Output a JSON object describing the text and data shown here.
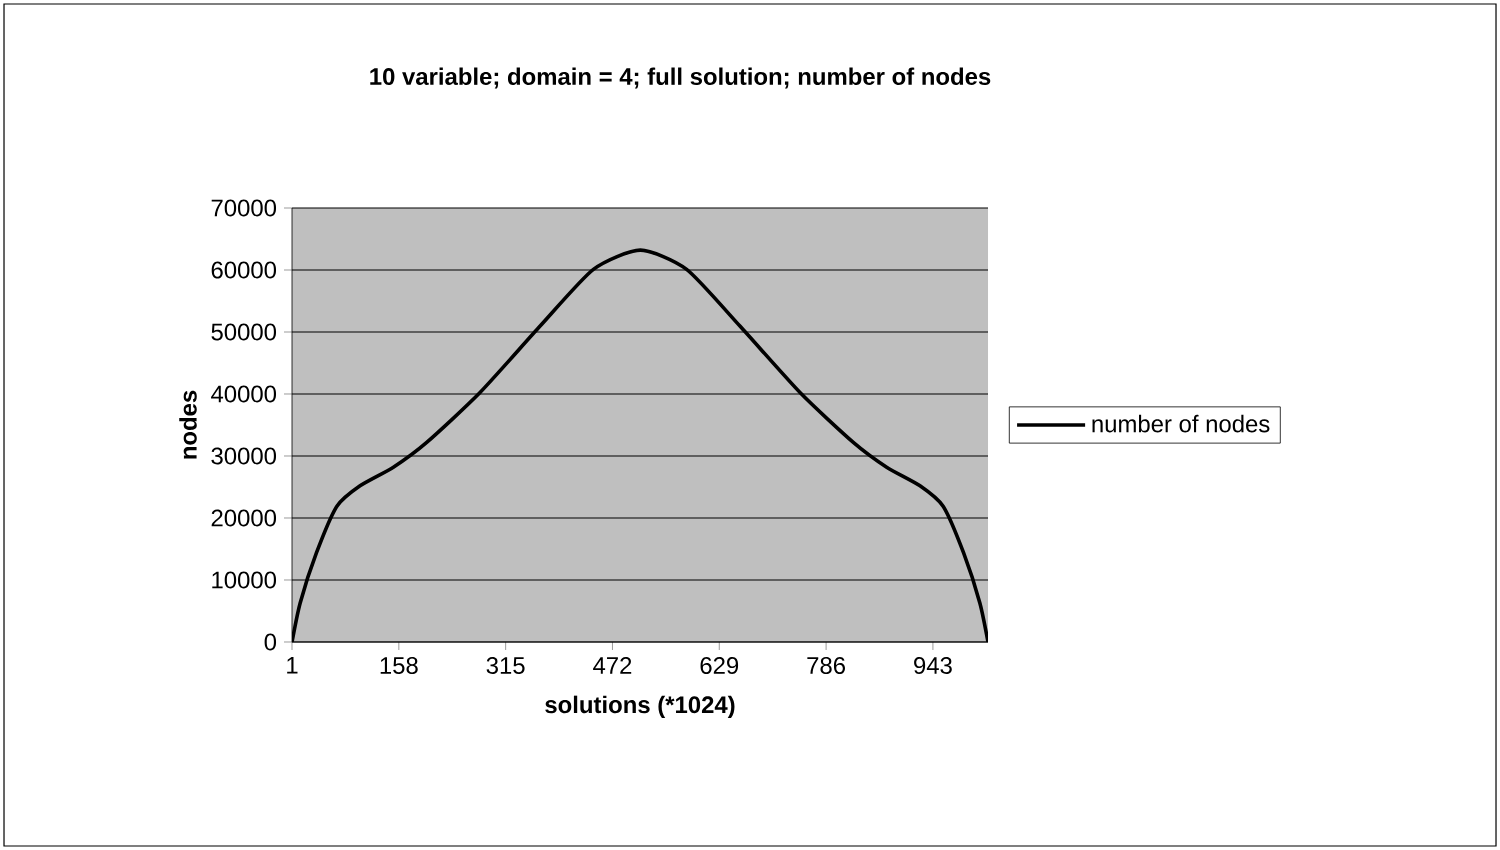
{
  "chart_data": {
    "type": "line",
    "title": "10 variable; domain = 4; full solution; number of nodes",
    "xlabel": "solutions (*1024)",
    "ylabel": "nodes",
    "x": [
      1,
      13,
      37,
      67,
      101,
      150,
      199,
      277,
      366,
      444,
      513,
      581,
      659,
      748,
      826,
      875,
      924,
      958,
      988,
      1012,
      1024
    ],
    "series": [
      {
        "name": "number of nodes",
        "color": "#000000",
        "values": [
          0,
          6300,
          14400,
          21900,
          25200,
          28200,
          32200,
          40200,
          51000,
          60100,
          63200,
          60100,
          51000,
          40200,
          32200,
          28200,
          25200,
          21900,
          14400,
          6300,
          0
        ]
      }
    ],
    "xlim": [
      1,
      1024
    ],
    "xticks": [
      1,
      158,
      315,
      472,
      629,
      786,
      943
    ],
    "ylim": [
      0,
      70000
    ],
    "yticks": [
      0,
      10000,
      20000,
      30000,
      40000,
      50000,
      60000,
      70000
    ],
    "grid": "y",
    "legend": "right",
    "marker": "none",
    "line_style": "solid"
  }
}
